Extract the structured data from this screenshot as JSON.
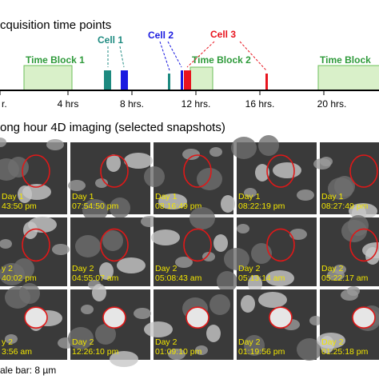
{
  "timeline": {
    "title": "cquisition time points",
    "cells": [
      "Cell 1",
      "Cell 2",
      "Cell 3"
    ],
    "blocks": [
      "Time Block 1",
      "Time Block 2",
      "Time Block"
    ],
    "axis_labels": [
      "r.",
      "4 hrs",
      "8 hrs.",
      "12 hrs.",
      "16 hrs.",
      "20 hrs."
    ]
  },
  "snapshots": {
    "title": "ong hour 4D imaging (selected snapshots)",
    "rows": [
      [
        {
          "day": "Day 1",
          "time": "43:50 pm"
        },
        {
          "day": "Day 1",
          "time": "07:54:50 pm"
        },
        {
          "day": "Day 1",
          "time": "08:16:49 pm"
        },
        {
          "day": "Day 1",
          "time": "08:22:19 pm"
        },
        {
          "day": "Day 1",
          "time": "08:27:49 pm"
        }
      ],
      [
        {
          "day": "y 2",
          "time": "40:02 pm"
        },
        {
          "day": "Day 2",
          "time": "04:55:07 am"
        },
        {
          "day": "Day 2",
          "time": "05:08:43 am"
        },
        {
          "day": "Day 2",
          "time": "05:13:14 am"
        },
        {
          "day": "Day 2",
          "time": "05:22:17 am"
        }
      ],
      [
        {
          "day": "y 2",
          "time": "3:56 am"
        },
        {
          "day": "Day 2",
          "time": "12:26:10 pm"
        },
        {
          "day": "Day 2",
          "time": "01:09:10 pm"
        },
        {
          "day": "Day 2",
          "time": "01:19:56 pm"
        },
        {
          "day": "Day 2",
          "time": "01:25:18 pm"
        }
      ]
    ],
    "scale_bar": "ale bar: 8 µm"
  }
}
